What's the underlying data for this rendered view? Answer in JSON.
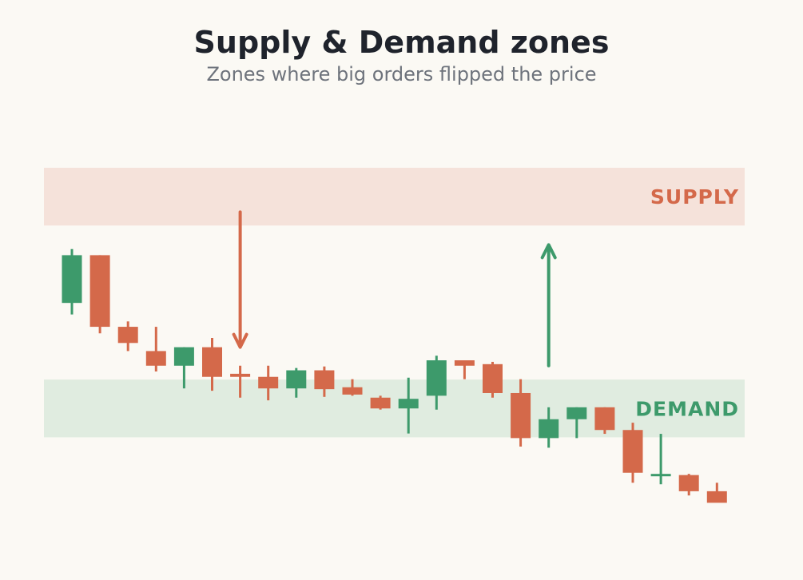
{
  "title": "Supply & Demand zones",
  "subtitle": "Zones where big orders flipped the price",
  "colors": {
    "background": "#fbf9f4",
    "up": "#3d9a6b",
    "down": "#d4694a",
    "supply_zone": "#f5e2da",
    "demand_zone": "#e0ece0"
  },
  "chart_data": {
    "type": "candlestick",
    "title": "Supply & Demand zones",
    "subtitle": "Zones where big orders flipped the price",
    "ylim": [
      0,
      100
    ],
    "zones": [
      {
        "label": "SUPPLY",
        "low": 85,
        "high": 100,
        "color": "#f5e2da",
        "label_color": "#d4694a"
      },
      {
        "label": "DEMAND",
        "low": 30,
        "high": 45,
        "color": "#e0ece0",
        "label_color": "#3d9a6b"
      }
    ],
    "candles": [
      {
        "open": 64.9,
        "high": 78.9,
        "low": 61.9,
        "close": 77.3
      },
      {
        "open": 77.3,
        "high": 77.3,
        "low": 57.0,
        "close": 58.7
      },
      {
        "open": 58.7,
        "high": 60.1,
        "low": 52.4,
        "close": 54.5
      },
      {
        "open": 52.4,
        "high": 58.7,
        "low": 47.1,
        "close": 48.6
      },
      {
        "open": 48.6,
        "high": 53.4,
        "low": 42.7,
        "close": 53.4
      },
      {
        "open": 53.4,
        "high": 55.8,
        "low": 42.1,
        "close": 45.7
      },
      {
        "open": 46.5,
        "high": 48.6,
        "low": 40.3,
        "close": 45.7
      },
      {
        "open": 45.7,
        "high": 48.6,
        "low": 39.6,
        "close": 42.7
      },
      {
        "open": 42.7,
        "high": 48.0,
        "low": 40.3,
        "close": 47.4
      },
      {
        "open": 47.4,
        "high": 48.4,
        "low": 40.5,
        "close": 42.5
      },
      {
        "open": 43.0,
        "high": 45.1,
        "low": 40.8,
        "close": 41.1
      },
      {
        "open": 40.3,
        "high": 40.8,
        "low": 37.2,
        "close": 37.5
      },
      {
        "open": 37.5,
        "high": 45.5,
        "low": 31.0,
        "close": 40.0
      },
      {
        "open": 40.8,
        "high": 51.2,
        "low": 37.2,
        "close": 50.0
      },
      {
        "open": 50.0,
        "high": 50.0,
        "low": 45.1,
        "close": 48.6
      },
      {
        "open": 49.0,
        "high": 49.6,
        "low": 40.3,
        "close": 41.5
      },
      {
        "open": 41.5,
        "high": 45.1,
        "low": 27.6,
        "close": 29.8
      },
      {
        "open": 29.8,
        "high": 37.8,
        "low": 27.3,
        "close": 34.7
      },
      {
        "open": 34.7,
        "high": 37.8,
        "low": 29.8,
        "close": 37.8
      },
      {
        "open": 37.8,
        "high": 37.8,
        "low": 30.9,
        "close": 31.9
      },
      {
        "open": 31.9,
        "high": 33.8,
        "low": 18.2,
        "close": 20.8
      },
      {
        "open": 20.5,
        "high": 30.9,
        "low": 17.8,
        "close": 20.5
      },
      {
        "open": 20.2,
        "high": 20.5,
        "low": 14.9,
        "close": 16.0
      },
      {
        "open": 16.0,
        "high": 18.2,
        "low": 13.5,
        "close": 13.0
      }
    ],
    "arrows": [
      {
        "direction": "down",
        "candle_index": 6,
        "from": 88.5,
        "to": 53.4,
        "color": "#d4694a"
      },
      {
        "direction": "up",
        "candle_index": 17,
        "from": 48.6,
        "to": 80.0,
        "color": "#3d9a6b"
      }
    ]
  }
}
